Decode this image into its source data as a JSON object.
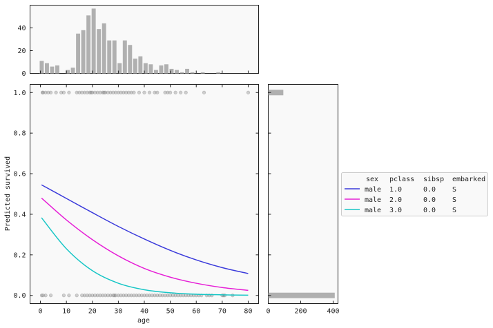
{
  "chart_data": [
    {
      "type": "bar",
      "panel": "top-histogram",
      "xlim": [
        -4,
        84
      ],
      "ylim": [
        0,
        60
      ],
      "yticks": [
        "0",
        "20",
        "40"
      ],
      "bin_width": 2,
      "bins": [
        {
          "x": 0.5,
          "v": 11
        },
        {
          "x": 2.5,
          "v": 9
        },
        {
          "x": 4.5,
          "v": 6
        },
        {
          "x": 6.5,
          "v": 7
        },
        {
          "x": 8.5,
          "v": 0
        },
        {
          "x": 10.5,
          "v": 3
        },
        {
          "x": 12.5,
          "v": 5
        },
        {
          "x": 14.5,
          "v": 35
        },
        {
          "x": 16.5,
          "v": 38
        },
        {
          "x": 18.5,
          "v": 51
        },
        {
          "x": 20.5,
          "v": 57
        },
        {
          "x": 22.5,
          "v": 39
        },
        {
          "x": 24.5,
          "v": 44
        },
        {
          "x": 26.5,
          "v": 29
        },
        {
          "x": 28.5,
          "v": 29
        },
        {
          "x": 30.5,
          "v": 9
        },
        {
          "x": 32.5,
          "v": 29
        },
        {
          "x": 34.5,
          "v": 25
        },
        {
          "x": 36.5,
          "v": 13
        },
        {
          "x": 38.5,
          "v": 15
        },
        {
          "x": 40.5,
          "v": 9
        },
        {
          "x": 42.5,
          "v": 8
        },
        {
          "x": 44.5,
          "v": 3
        },
        {
          "x": 46.5,
          "v": 7
        },
        {
          "x": 48.5,
          "v": 8
        },
        {
          "x": 50.5,
          "v": 4
        },
        {
          "x": 52.5,
          "v": 3
        },
        {
          "x": 54.5,
          "v": 1
        },
        {
          "x": 56.5,
          "v": 4
        },
        {
          "x": 58.5,
          "v": 1
        },
        {
          "x": 62.5,
          "v": 1
        },
        {
          "x": 68.5,
          "v": 1
        }
      ]
    },
    {
      "type": "line",
      "panel": "main",
      "xlabel": "age",
      "ylabel": "Predicted survived",
      "xlim": [
        -4,
        84
      ],
      "ylim": [
        -0.04,
        1.04
      ],
      "xticks": [
        "0",
        "10",
        "20",
        "30",
        "40",
        "50",
        "60",
        "70",
        "80"
      ],
      "yticks": [
        "0.0",
        "0.2",
        "0.4",
        "0.6",
        "0.8",
        "1.0"
      ],
      "series": [
        {
          "color": "#3b3bdb",
          "x": [
            0.42,
            10,
            20,
            30,
            40,
            50,
            60,
            70,
            80
          ],
          "values": [
            0.545,
            0.478,
            0.408,
            0.34,
            0.278,
            0.222,
            0.175,
            0.137,
            0.108
          ]
        },
        {
          "color": "#e61fd6",
          "x": [
            0.42,
            10,
            20,
            30,
            40,
            50,
            60,
            70,
            80
          ],
          "values": [
            0.48,
            0.372,
            0.275,
            0.195,
            0.133,
            0.09,
            0.06,
            0.039,
            0.025
          ]
        },
        {
          "color": "#17c6c6",
          "x": [
            0.42,
            10,
            20,
            30,
            40,
            50,
            60,
            70,
            80
          ],
          "values": [
            0.383,
            0.23,
            0.122,
            0.06,
            0.028,
            0.013,
            0.006,
            0.003,
            0.001
          ]
        }
      ],
      "points_y1": [
        0.8,
        1,
        2,
        3,
        4,
        6,
        8,
        9,
        11,
        14,
        15,
        16,
        17,
        18,
        19,
        19.5,
        20,
        21,
        22,
        23,
        24,
        24.5,
        25,
        26,
        27,
        28,
        29,
        30,
        31,
        32,
        33,
        34,
        35,
        36,
        38,
        40,
        42,
        44,
        45,
        48,
        49,
        50,
        52,
        54,
        56,
        63,
        80
      ],
      "points_y0": [
        0.5,
        1,
        2,
        4,
        9,
        11,
        14,
        16,
        17,
        18,
        19,
        20,
        21,
        22,
        23,
        24,
        25,
        26,
        27,
        28,
        28.5,
        29,
        30,
        31,
        32,
        33,
        34,
        35,
        36,
        37,
        38,
        39,
        40,
        41,
        42,
        43,
        44,
        45,
        46,
        47,
        48,
        49,
        50,
        51,
        52,
        53,
        54,
        55,
        56,
        57,
        58,
        59,
        60,
        61,
        62,
        64,
        65,
        66,
        70,
        70.5,
        71,
        74
      ]
    },
    {
      "type": "bar",
      "panel": "right-histogram",
      "orientation": "horizontal",
      "xlim": [
        0,
        430
      ],
      "xticks": [
        "0",
        "200",
        "400"
      ],
      "bars": [
        {
          "y": 0.0,
          "v": 410
        },
        {
          "y": 1.0,
          "v": 93
        }
      ]
    }
  ],
  "legend": {
    "header": [
      "sex",
      "pclass",
      "sibsp",
      "embarked"
    ],
    "rows": [
      {
        "color": "#3b3bdb",
        "sex": "male",
        "pclass": "1.0",
        "sibsp": "0.0",
        "embarked": "S"
      },
      {
        "color": "#e61fd6",
        "sex": "male",
        "pclass": "2.0",
        "sibsp": "0.0",
        "embarked": "S"
      },
      {
        "color": "#17c6c6",
        "sex": "male",
        "pclass": "3.0",
        "sibsp": "0.0",
        "embarked": "S"
      }
    ]
  }
}
